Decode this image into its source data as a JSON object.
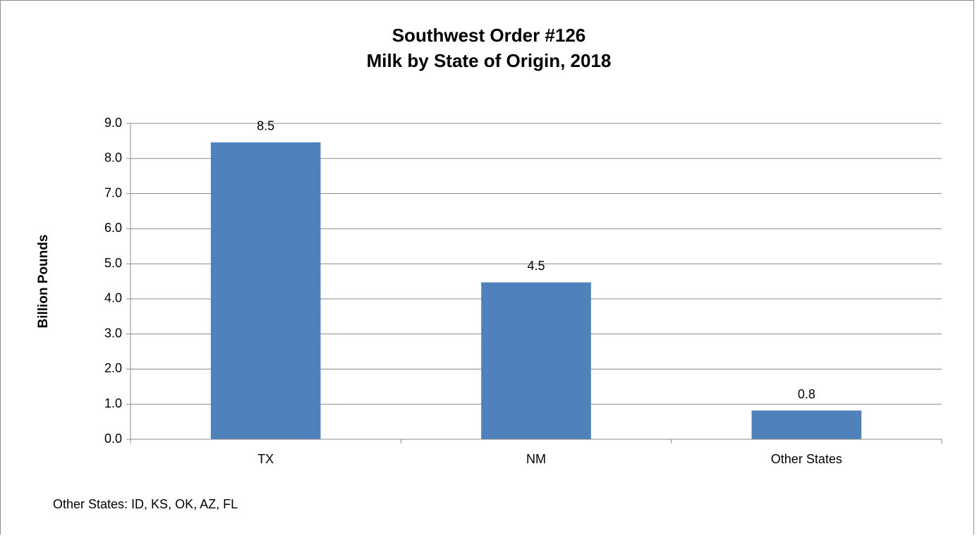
{
  "chart_data": {
    "type": "bar",
    "title": [
      "Southwest Order #126",
      "Milk by State of Origin, 2018"
    ],
    "y_label": "Billion Pounds",
    "annotation": "Other States: ID, KS, OK, AZ, FL",
    "categories": [
      "TX",
      "NM",
      "Other States"
    ],
    "values": [
      8.46,
      4.47,
      0.82
    ],
    "value_labels": [
      "8.5",
      "4.5",
      "0.8"
    ],
    "color": "#4f81bd",
    "ylim": [
      0,
      9
    ],
    "yticks": [
      {
        "value": 0,
        "label": "0.0"
      },
      {
        "value": 1,
        "label": "1.0"
      },
      {
        "value": 2,
        "label": "2.0"
      },
      {
        "value": 3,
        "label": "3.0"
      },
      {
        "value": 4,
        "label": "4.0"
      },
      {
        "value": 5,
        "label": "5.0"
      },
      {
        "value": 6,
        "label": "6.0"
      },
      {
        "value": 7,
        "label": "7.0"
      },
      {
        "value": 8,
        "label": "8.0"
      },
      {
        "value": 9,
        "label": "9.0"
      }
    ],
    "grid": true
  }
}
